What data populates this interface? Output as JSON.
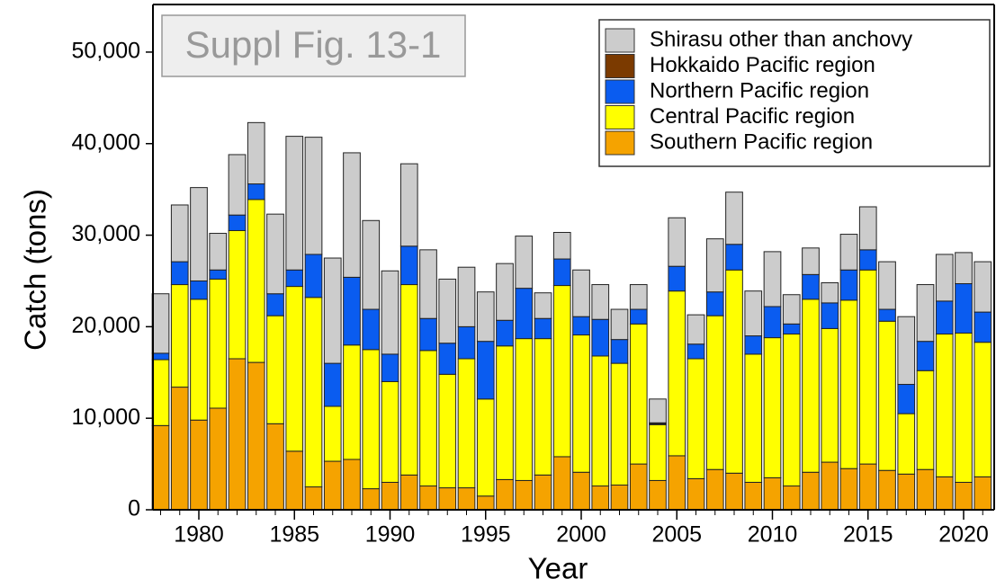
{
  "chart_data": {
    "type": "stacked_bar",
    "annotation": "Suppl Fig. 13-1",
    "x_label": "Year",
    "y_label": "Catch (tons)",
    "x": [
      1978,
      1979,
      1980,
      1981,
      1982,
      1983,
      1984,
      1985,
      1986,
      1987,
      1988,
      1989,
      1990,
      1991,
      1992,
      1993,
      1994,
      1995,
      1996,
      1997,
      1998,
      1999,
      2000,
      2001,
      2002,
      2003,
      2004,
      2005,
      2006,
      2007,
      2008,
      2009,
      2010,
      2011,
      2012,
      2013,
      2014,
      2015,
      2016,
      2017,
      2018,
      2019,
      2020,
      2021
    ],
    "xlim": [
      1977.6,
      2021.6
    ],
    "xticks": [
      1980,
      1985,
      1990,
      1995,
      2000,
      2005,
      2010,
      2015,
      2020
    ],
    "ylim": [
      0,
      55200
    ],
    "yticks": [
      0,
      {
        "value": 10000,
        "label": "10,000"
      },
      {
        "value": 20000,
        "label": "20,000"
      },
      {
        "value": 30000,
        "label": "30,000"
      },
      {
        "value": 40000,
        "label": "40,000"
      },
      {
        "value": 50000,
        "label": "50,000"
      }
    ],
    "series": [
      {
        "name": "Southern Pacific region",
        "color": "#f5a300",
        "values": [
          9200,
          13400,
          9800,
          11100,
          16500,
          16100,
          9400,
          6400,
          2500,
          5300,
          5500,
          2300,
          3000,
          3800,
          2600,
          2400,
          2400,
          1500,
          3300,
          3200,
          3800,
          5800,
          4100,
          2600,
          2700,
          5000,
          3200,
          5900,
          3400,
          4400,
          4000,
          3000,
          3500,
          2600,
          4100,
          5200,
          4500,
          5000,
          4300,
          3900,
          4400,
          3600,
          3000,
          3600
        ]
      },
      {
        "name": "Central Pacific region",
        "color": "#ffff00",
        "values": [
          7200,
          11200,
          13200,
          14100,
          14000,
          17800,
          11800,
          18000,
          20700,
          6000,
          12500,
          15200,
          11000,
          20800,
          14800,
          12400,
          14100,
          10600,
          14600,
          15500,
          14900,
          18700,
          15000,
          14200,
          13300,
          15300,
          6100,
          18000,
          13100,
          16800,
          22200,
          14000,
          15300,
          16600,
          18900,
          14600,
          18400,
          21200,
          16300,
          6600,
          10800,
          15600,
          16300,
          14700
        ]
      },
      {
        "name": "Northern Pacific region",
        "color": "#0a5cf0",
        "values": [
          700,
          2500,
          2000,
          1000,
          1700,
          1700,
          2400,
          1800,
          4700,
          4700,
          7400,
          4400,
          3000,
          4200,
          3500,
          3400,
          3500,
          6300,
          2800,
          5500,
          2200,
          2900,
          2000,
          4000,
          2600,
          1600,
          100,
          2700,
          1600,
          2600,
          2800,
          2000,
          3400,
          1100,
          2700,
          2800,
          3300,
          2200,
          1300,
          3200,
          3200,
          3600,
          5400,
          3300
        ]
      },
      {
        "name": "Hokkaido Pacific region",
        "color": "#7b3a00",
        "values": [
          0,
          0,
          0,
          0,
          0,
          0,
          0,
          0,
          0,
          0,
          0,
          0,
          0,
          0,
          0,
          0,
          0,
          0,
          0,
          0,
          0,
          0,
          0,
          0,
          0,
          0,
          100,
          0,
          0,
          0,
          0,
          0,
          0,
          0,
          0,
          0,
          0,
          0,
          0,
          0,
          0,
          0,
          0,
          0
        ]
      },
      {
        "name": "Shirasu other than anchovy",
        "color": "#cccccc",
        "values": [
          6500,
          6200,
          10200,
          4000,
          6600,
          6700,
          8700,
          14600,
          12800,
          11500,
          13600,
          9700,
          9100,
          9000,
          7500,
          7000,
          6500,
          5400,
          6200,
          5700,
          2800,
          2900,
          5100,
          3800,
          3300,
          2700,
          2600,
          5300,
          3200,
          5800,
          5700,
          4900,
          6000,
          3200,
          2900,
          2200,
          3900,
          4700,
          5200,
          7400,
          6200,
          5100,
          3400,
          5500
        ]
      }
    ]
  }
}
